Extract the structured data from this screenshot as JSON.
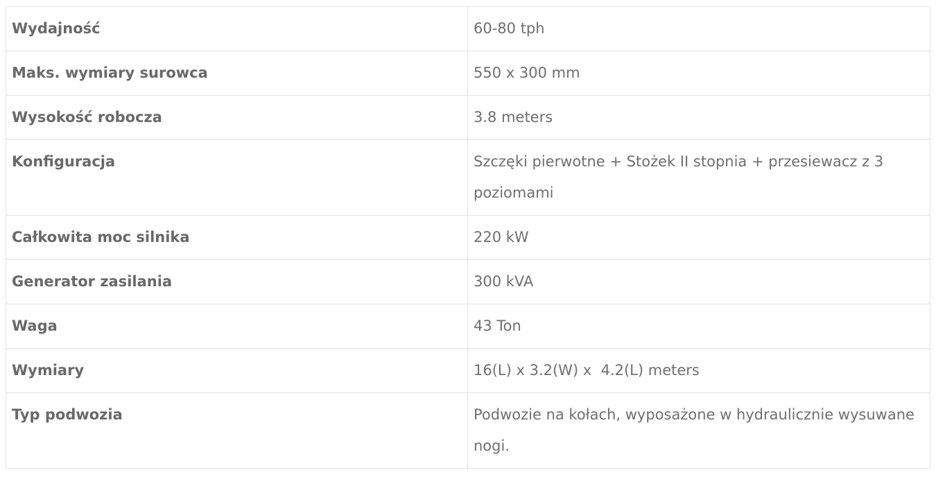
{
  "specs": [
    {
      "label": "Wydajność",
      "value": "60-80 tph"
    },
    {
      "label": "Maks. wymiary surowca",
      "value": "550 x 300 mm"
    },
    {
      "label": "Wysokość robocza",
      "value": "3.8 meters"
    },
    {
      "label": "Konfiguracja",
      "value": "Szczęki pierwotne + Stożek II stopnia + przesiewacz z 3 poziomami"
    },
    {
      "label": "Całkowita moc silnika",
      "value": "220 kW"
    },
    {
      "label": "Generator zasilania",
      "value": "300 kVA"
    },
    {
      "label": "Waga",
      "value": "43 Ton"
    },
    {
      "label": "Wymiary",
      "value": "16(L) x 3.2(W) x  4.2(L) meters"
    },
    {
      "label": "Typ podwozia",
      "value": "Podwozie na kołach, wyposażone w hydraulicznie wysuwane nogi."
    }
  ]
}
